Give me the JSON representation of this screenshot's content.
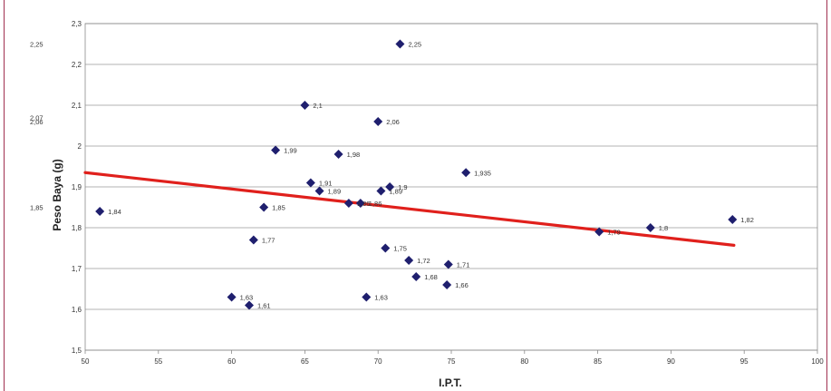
{
  "chart_data": {
    "type": "scatter",
    "xlabel": "I.P.T.",
    "ylabel": "Peso Baya (g)",
    "xlim": [
      50,
      100
    ],
    "ylim": [
      1.5,
      2.3
    ],
    "xticks": [
      "50",
      "55",
      "60",
      "65",
      "70",
      "75",
      "80",
      "85",
      "90",
      "95",
      "100"
    ],
    "yticks": [
      "1,5",
      "1,6",
      "1,7",
      "1,8",
      "1,9",
      "2",
      "2,1",
      "2,2",
      "2,3"
    ],
    "grid": "horizontal",
    "marker_color": "#1f1f6e",
    "trend_color": "#e0201c",
    "trendline": {
      "x": [
        50,
        94.3
      ],
      "y": [
        1.935,
        1.757
      ]
    },
    "points": [
      {
        "x": 51.0,
        "y": 1.84,
        "label": "1,84"
      },
      {
        "x": 60.0,
        "y": 1.63,
        "label": "1,63"
      },
      {
        "x": 61.2,
        "y": 1.61,
        "label": "1,61"
      },
      {
        "x": 61.5,
        "y": 1.77,
        "label": "1,77"
      },
      {
        "x": 62.2,
        "y": 1.85,
        "label": "1,85"
      },
      {
        "x": 63.0,
        "y": 1.99,
        "label": "1,99"
      },
      {
        "x": 65.0,
        "y": 2.1,
        "label": "2,1"
      },
      {
        "x": 65.4,
        "y": 1.91,
        "label": "1,91"
      },
      {
        "x": 66.0,
        "y": 1.89,
        "label": "1,89"
      },
      {
        "x": 67.3,
        "y": 1.98,
        "label": "1,98"
      },
      {
        "x": 68.0,
        "y": 1.86,
        "label": "1,86"
      },
      {
        "x": 68.8,
        "y": 1.86,
        "label": "1,86"
      },
      {
        "x": 69.2,
        "y": 1.63,
        "label": "1,63"
      },
      {
        "x": 70.0,
        "y": 2.06,
        "label": "2,06"
      },
      {
        "x": 70.2,
        "y": 1.89,
        "label": "1,89"
      },
      {
        "x": 70.5,
        "y": 1.75,
        "label": "1,75"
      },
      {
        "x": 70.8,
        "y": 1.9,
        "label": "1,9"
      },
      {
        "x": 71.5,
        "y": 2.25,
        "label": "2,25"
      },
      {
        "x": 72.1,
        "y": 1.72,
        "label": "1,72"
      },
      {
        "x": 72.6,
        "y": 1.68,
        "label": "1,68"
      },
      {
        "x": 74.7,
        "y": 1.66,
        "label": "1,66"
      },
      {
        "x": 74.8,
        "y": 1.71,
        "label": "1,71"
      },
      {
        "x": 76.0,
        "y": 1.935,
        "label": "1,935"
      },
      {
        "x": 85.1,
        "y": 1.79,
        "label": "1,79"
      },
      {
        "x": 88.6,
        "y": 1.8,
        "label": "1,8"
      },
      {
        "x": 94.2,
        "y": 1.82,
        "label": "1,82"
      }
    ],
    "side_labels": [
      {
        "text": "2,25",
        "y": 2.25
      },
      {
        "text": "2,07",
        "y": 2.07
      },
      {
        "text": "2,06",
        "y": 2.06
      },
      {
        "text": "1,85",
        "y": 1.85
      }
    ]
  }
}
